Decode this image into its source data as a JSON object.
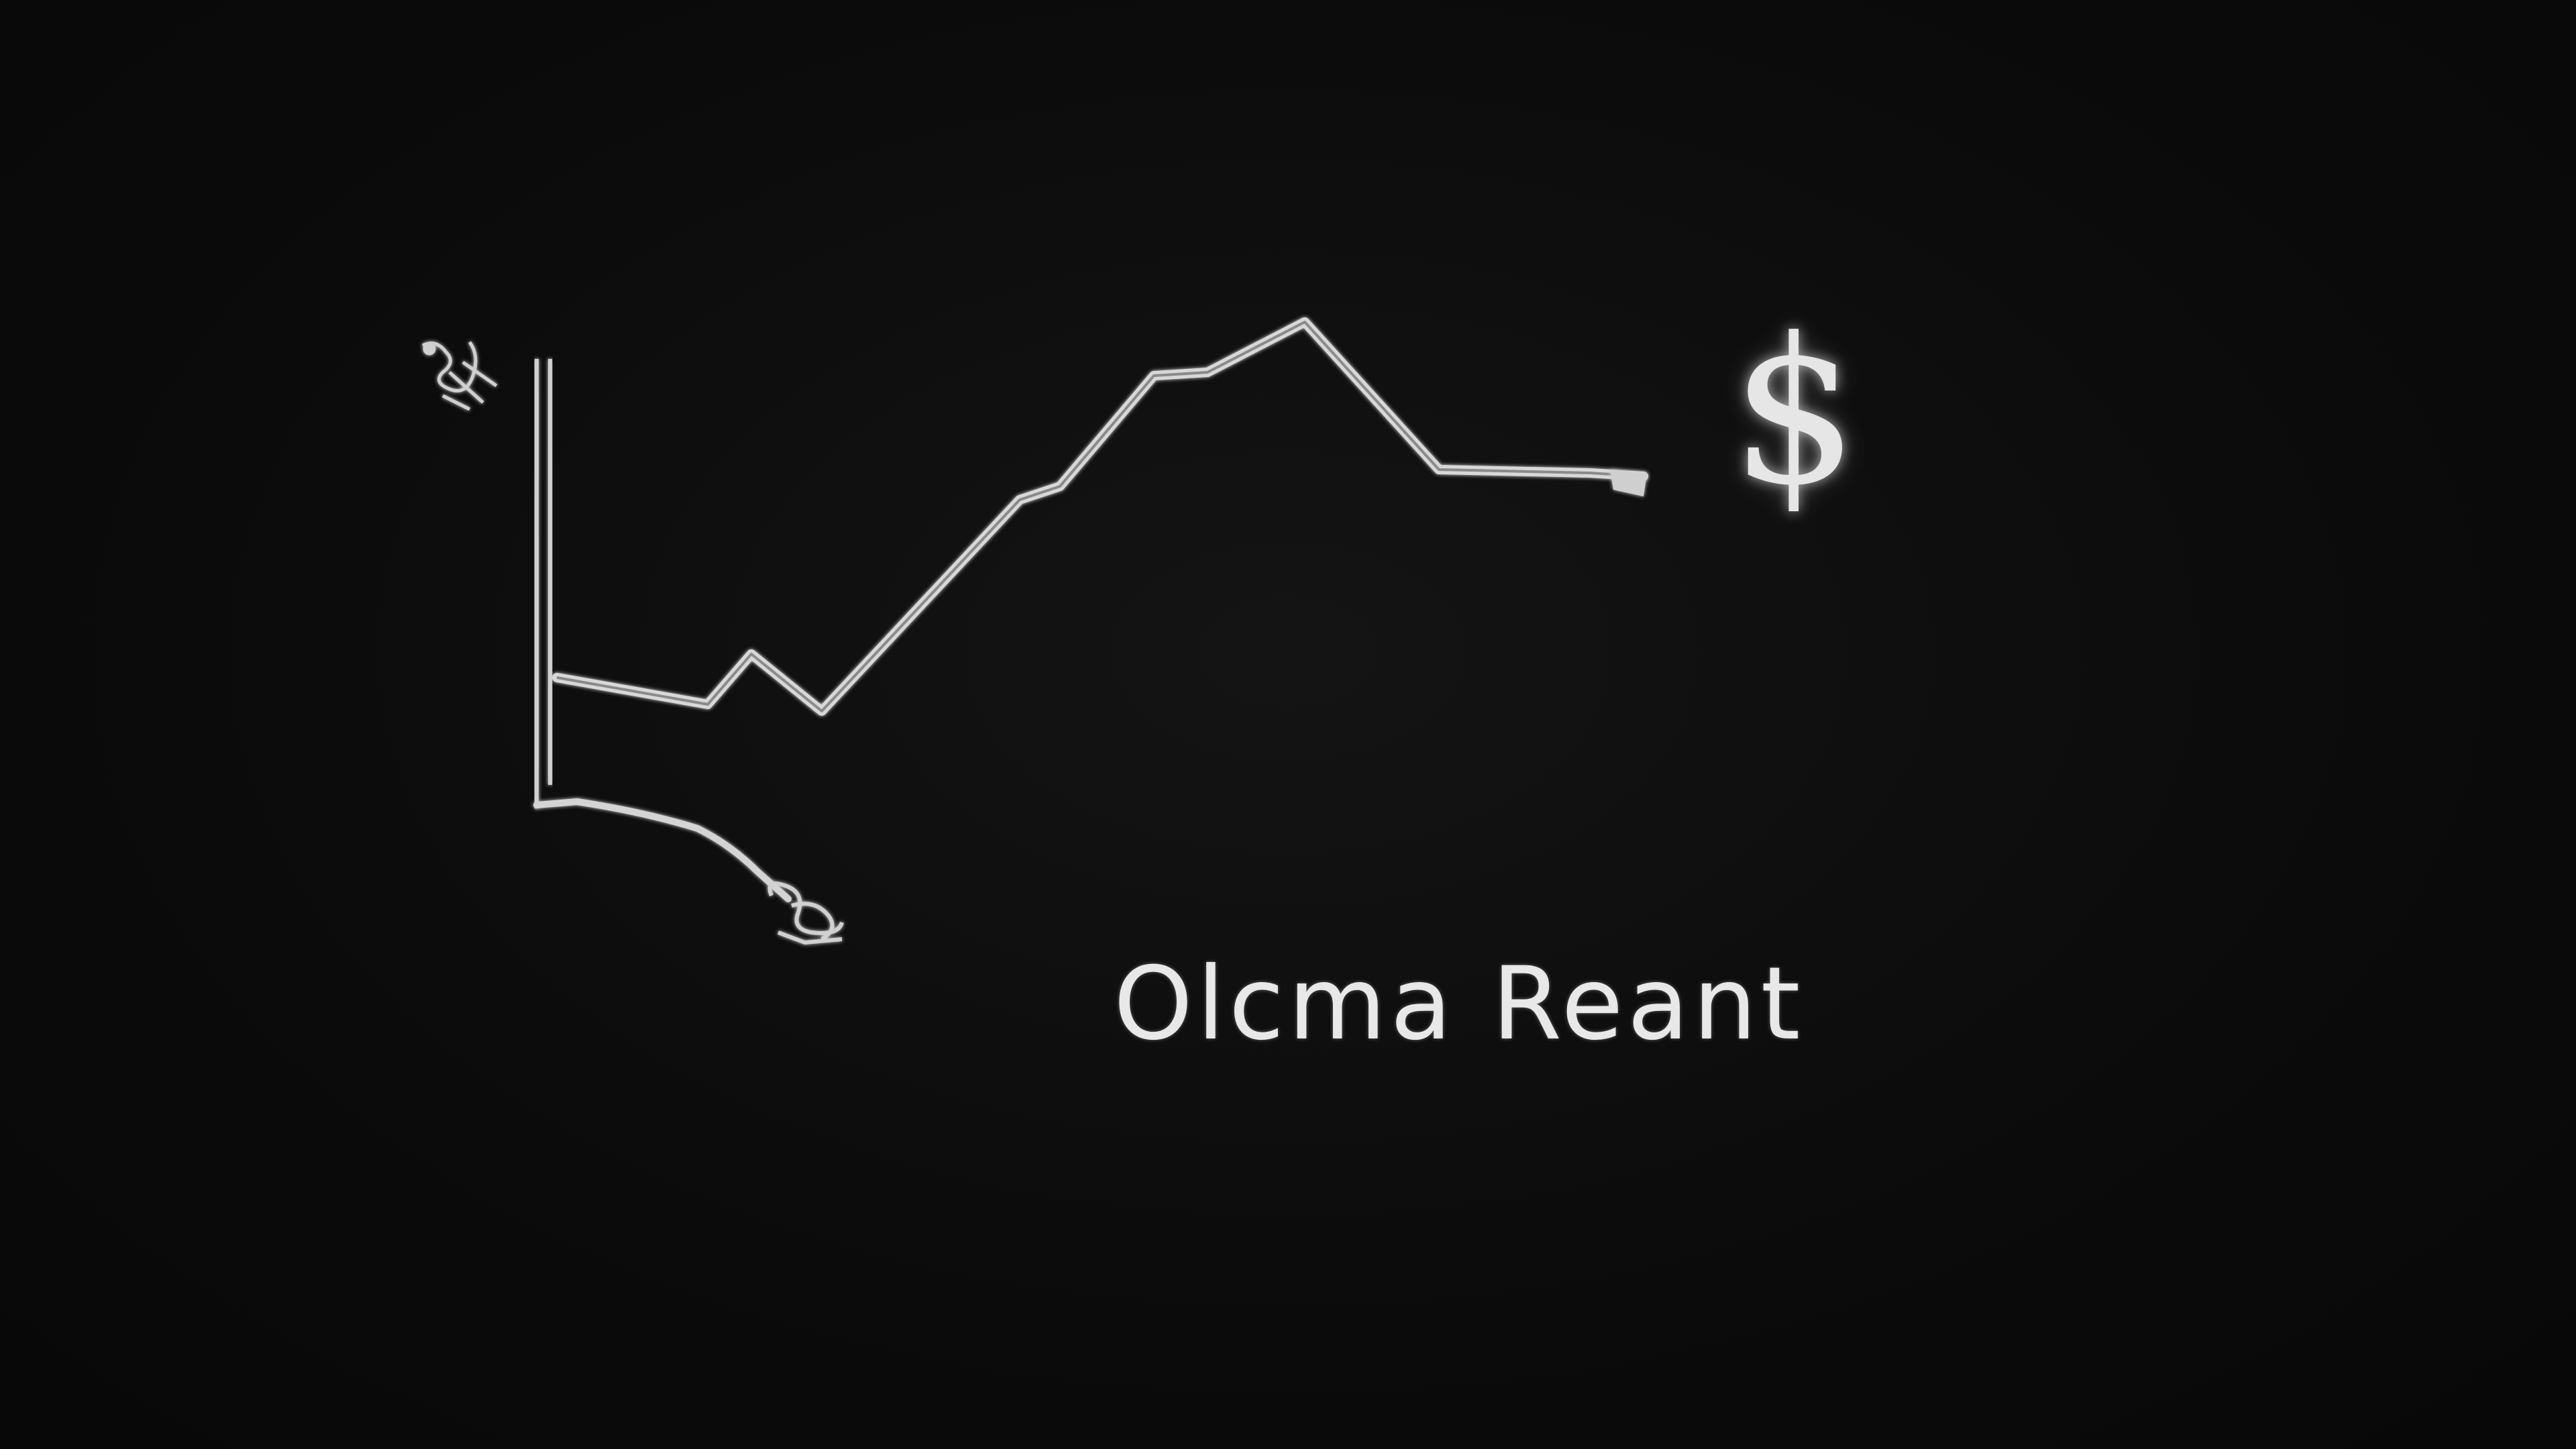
{
  "caption": "Olcma Reant",
  "symbols": {
    "dollar": "$"
  },
  "colors": {
    "background": "#0b0b0b",
    "stroke": "#d8d8d8"
  },
  "icons": [
    "dollar-sign-icon",
    "scribble-top-icon",
    "scribble-bottom-icon"
  ]
}
